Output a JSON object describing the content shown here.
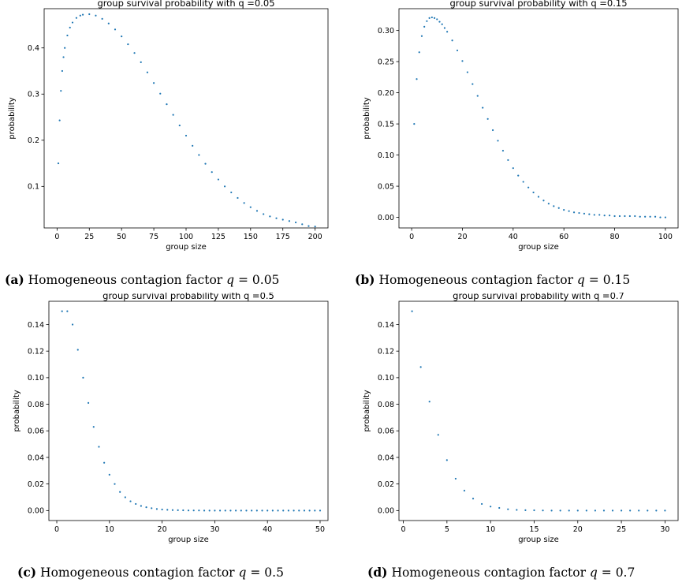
{
  "chart_data": [
    {
      "type": "scatter",
      "title": "group survival probability with q =0.05",
      "xlabel": "group size",
      "ylabel": "probability",
      "xlim": [
        -10,
        210
      ],
      "ylim": [
        0.01,
        0.485
      ],
      "xticks": [
        0,
        25,
        50,
        75,
        100,
        125,
        150,
        175,
        200
      ],
      "yticks": [
        0.1,
        0.2,
        0.3,
        0.4
      ],
      "ytick_labels": [
        "0.1",
        "0.2",
        "0.3",
        "0.4"
      ],
      "grid": false,
      "series": [
        {
          "color": "#1f77b4",
          "x": [
            1,
            2,
            3,
            4,
            5,
            6,
            8,
            10,
            12,
            15,
            18,
            20,
            25,
            30,
            35,
            40,
            45,
            50,
            55,
            60,
            65,
            70,
            75,
            80,
            85,
            90,
            95,
            100,
            105,
            110,
            115,
            120,
            125,
            130,
            135,
            140,
            145,
            150,
            155,
            160,
            165,
            170,
            175,
            180,
            185,
            190,
            195,
            200
          ],
          "y": [
            0.15,
            0.243,
            0.307,
            0.35,
            0.38,
            0.4,
            0.427,
            0.444,
            0.455,
            0.465,
            0.47,
            0.472,
            0.473,
            0.47,
            0.463,
            0.453,
            0.44,
            0.425,
            0.408,
            0.389,
            0.369,
            0.347,
            0.324,
            0.301,
            0.278,
            0.255,
            0.232,
            0.21,
            0.188,
            0.168,
            0.149,
            0.131,
            0.115,
            0.1,
            0.087,
            0.075,
            0.064,
            0.055,
            0.047,
            0.04,
            0.035,
            0.031,
            0.028,
            0.025,
            0.022,
            0.018,
            0.014,
            0.013
          ]
        }
      ]
    },
    {
      "type": "scatter",
      "title": "group survival probability with q =0.15",
      "xlabel": "group size",
      "ylabel": "probability",
      "xlim": [
        -5,
        105
      ],
      "ylim": [
        -0.017,
        0.335
      ],
      "xticks": [
        0,
        20,
        40,
        60,
        80,
        100
      ],
      "yticks": [
        0.0,
        0.05,
        0.1,
        0.15,
        0.2,
        0.25,
        0.3
      ],
      "ytick_labels": [
        "0.00",
        "0.05",
        "0.10",
        "0.15",
        "0.20",
        "0.25",
        "0.30"
      ],
      "grid": false,
      "series": [
        {
          "color": "#1f77b4",
          "x": [
            1,
            2,
            3,
            4,
            5,
            6,
            7,
            8,
            9,
            10,
            11,
            12,
            13,
            14,
            16,
            18,
            20,
            22,
            24,
            26,
            28,
            30,
            32,
            34,
            36,
            38,
            40,
            42,
            44,
            46,
            48,
            50,
            52,
            54,
            56,
            58,
            60,
            62,
            64,
            66,
            68,
            70,
            72,
            74,
            76,
            78,
            80,
            82,
            84,
            86,
            88,
            90,
            92,
            94,
            96,
            98,
            100
          ],
          "y": [
            0.15,
            0.222,
            0.265,
            0.291,
            0.306,
            0.315,
            0.32,
            0.321,
            0.32,
            0.318,
            0.314,
            0.31,
            0.304,
            0.298,
            0.284,
            0.268,
            0.251,
            0.233,
            0.214,
            0.195,
            0.176,
            0.158,
            0.14,
            0.123,
            0.107,
            0.092,
            0.079,
            0.067,
            0.057,
            0.048,
            0.04,
            0.033,
            0.027,
            0.022,
            0.018,
            0.015,
            0.012,
            0.01,
            0.008,
            0.007,
            0.006,
            0.005,
            0.004,
            0.004,
            0.003,
            0.003,
            0.002,
            0.002,
            0.002,
            0.002,
            0.002,
            0.001,
            0.001,
            0.001,
            0.001,
            0.0,
            0.0
          ]
        }
      ]
    },
    {
      "type": "scatter",
      "title": "group survival probability with q =0.5",
      "xlabel": "group size",
      "ylabel": "probability",
      "xlim": [
        -1.5,
        51.5
      ],
      "ylim": [
        -0.0075,
        0.1575
      ],
      "xticks": [
        0,
        10,
        20,
        30,
        40,
        50
      ],
      "yticks": [
        0.0,
        0.02,
        0.04,
        0.06,
        0.08,
        0.1,
        0.12,
        0.14
      ],
      "ytick_labels": [
        "0.00",
        "0.02",
        "0.04",
        "0.06",
        "0.08",
        "0.10",
        "0.12",
        "0.14"
      ],
      "grid": false,
      "series": [
        {
          "color": "#1f77b4",
          "x": [
            1,
            2,
            3,
            4,
            5,
            6,
            7,
            8,
            9,
            10,
            11,
            12,
            13,
            14,
            15,
            16,
            17,
            18,
            19,
            20,
            21,
            22,
            23,
            24,
            25,
            26,
            27,
            28,
            29,
            30,
            31,
            32,
            33,
            34,
            35,
            36,
            37,
            38,
            39,
            40,
            41,
            42,
            43,
            44,
            45,
            46,
            47,
            48,
            49,
            50
          ],
          "y": [
            0.15,
            0.15,
            0.14,
            0.121,
            0.1,
            0.081,
            0.063,
            0.048,
            0.036,
            0.027,
            0.02,
            0.014,
            0.01,
            0.007,
            0.005,
            0.0035,
            0.0025,
            0.0018,
            0.0012,
            0.0008,
            0.0006,
            0.0004,
            0.0003,
            0.0002,
            0.0001,
            0.0001,
            0.0001,
            0,
            0,
            0,
            0,
            0,
            0,
            0,
            0,
            0,
            0,
            0,
            0,
            0,
            0,
            0,
            0,
            0,
            0,
            0,
            0,
            0,
            0,
            0
          ]
        }
      ]
    },
    {
      "type": "scatter",
      "title": "group survival probability with q =0.7",
      "xlabel": "group size",
      "ylabel": "probability",
      "xlim": [
        -0.5,
        31.5
      ],
      "ylim": [
        -0.0075,
        0.1575
      ],
      "xticks": [
        0,
        5,
        10,
        15,
        20,
        25,
        30
      ],
      "yticks": [
        0.0,
        0.02,
        0.04,
        0.06,
        0.08,
        0.1,
        0.12,
        0.14
      ],
      "ytick_labels": [
        "0.00",
        "0.02",
        "0.04",
        "0.06",
        "0.08",
        "0.10",
        "0.12",
        "0.14"
      ],
      "grid": false,
      "series": [
        {
          "color": "#1f77b4",
          "x": [
            1,
            2,
            3,
            4,
            5,
            6,
            7,
            8,
            9,
            10,
            11,
            12,
            13,
            14,
            15,
            16,
            17,
            18,
            19,
            20,
            21,
            22,
            23,
            24,
            25,
            26,
            27,
            28,
            29,
            30
          ],
          "y": [
            0.15,
            0.108,
            0.082,
            0.057,
            0.038,
            0.024,
            0.015,
            0.009,
            0.005,
            0.003,
            0.002,
            0.001,
            0.0005,
            0.0003,
            0.0002,
            0.0001,
            0,
            0,
            0,
            0,
            0,
            0,
            0,
            0,
            0,
            0,
            0,
            0,
            0,
            0
          ]
        }
      ]
    }
  ],
  "captions": [
    {
      "label": "(a)",
      "text_pre": "Homogeneous contagion factor ",
      "var": "q",
      "text_post": " = 0.05"
    },
    {
      "label": "(b)",
      "text_pre": "Homogeneous contagion factor ",
      "var": "q",
      "text_post": " = 0.15"
    },
    {
      "label": "(c)",
      "text_pre": "Homogeneous contagion factor ",
      "var": "q",
      "text_post": " = 0.5"
    },
    {
      "label": "(d)",
      "text_pre": "Homogeneous contagion factor ",
      "var": "q",
      "text_post": " = 0.7"
    }
  ]
}
